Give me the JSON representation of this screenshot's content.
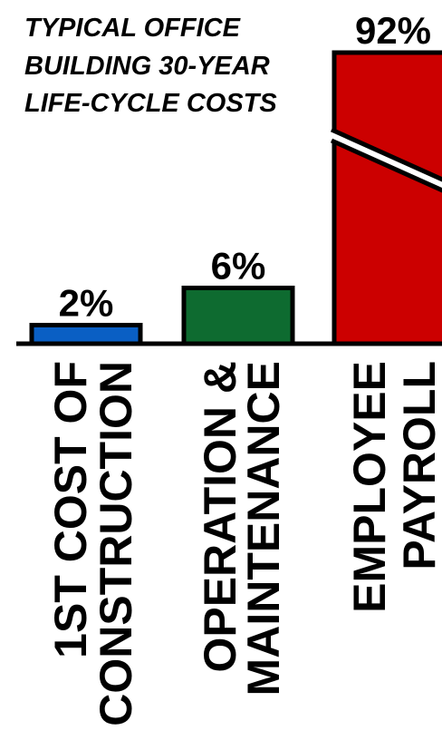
{
  "chart_data": {
    "type": "bar",
    "title_lines": [
      "TYPICAL OFFICE",
      "BUILDING 30-YEAR",
      "LIFE-CYCLE COSTS"
    ],
    "categories": [
      {
        "lines": [
          "1ST COST OF",
          "CONSTRUCTION"
        ]
      },
      {
        "lines": [
          "OPERATION &",
          "MAINTENANCE"
        ]
      },
      {
        "lines": [
          "EMPLOYEE",
          "PAYROLL"
        ]
      }
    ],
    "values": [
      2,
      6,
      92
    ],
    "value_labels": [
      "2%",
      "6%",
      "92%"
    ],
    "unit": "%",
    "colors": [
      "#0a5fc4",
      "#0e6b30",
      "#cc0000"
    ],
    "axis_break_on_bar": 2,
    "grid": false,
    "legend": "none"
  }
}
